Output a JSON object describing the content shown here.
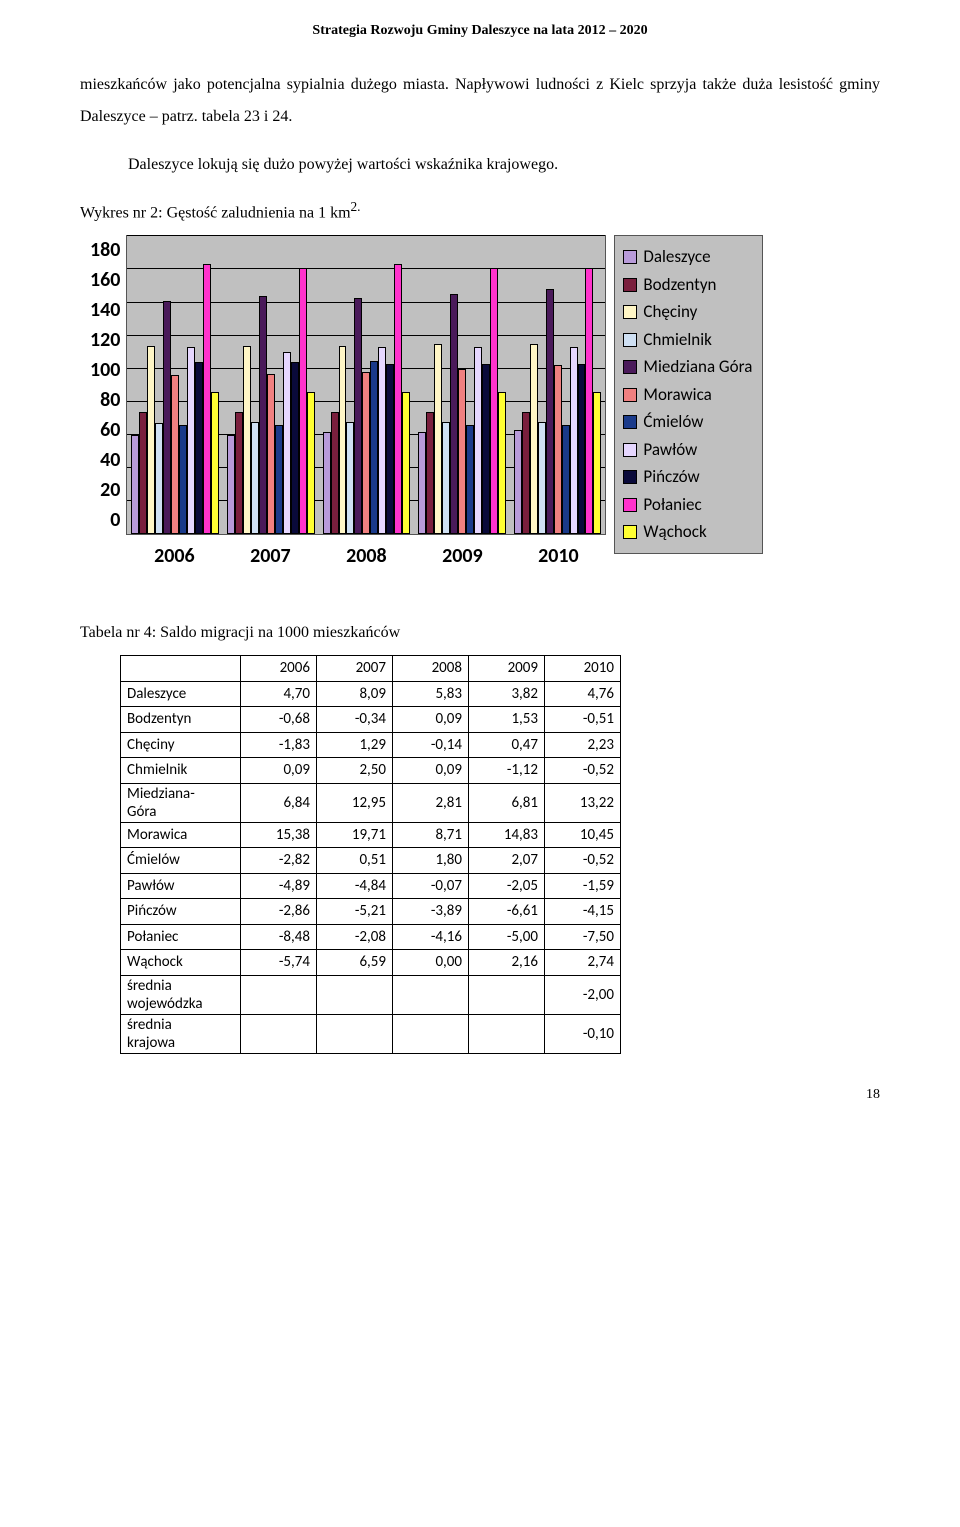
{
  "header": {
    "title": "Strategia Rozwoju Gminy Daleszyce na lata 2012 – 2020"
  },
  "paragraphs": {
    "p1": "mieszkańców jako potencjalna sypialnia dużego miasta. Napływowi ludności z Kielc sprzyja także duża lesistość gminy Daleszyce – patrz. tabela 23 i 24.",
    "p2": "Daleszyce lokują się dużo powyżej wartości wskaźnika krajowego.",
    "fig_caption": "Wykres nr 2: Gęstość zaludnienia na 1 km",
    "fig_caption_sup": "2.",
    "tbl_caption": "Tabela nr 4: Saldo migracji na 1000 mieszkańców"
  },
  "chart": {
    "type": "bar",
    "ylim": [
      0,
      180
    ],
    "yticks": [
      0,
      20,
      40,
      60,
      80,
      100,
      120,
      140,
      160,
      180
    ],
    "categories": [
      "2006",
      "2007",
      "2008",
      "2009",
      "2010"
    ],
    "series": [
      {
        "name": "Daleszyce",
        "color": "#b89bd9",
        "values": [
          60,
          60,
          62,
          62,
          63
        ]
      },
      {
        "name": "Bodzentyn",
        "color": "#7a1f3d",
        "values": [
          74,
          74,
          74,
          74,
          74
        ]
      },
      {
        "name": "Chęciny",
        "color": "#fff6c6",
        "values": [
          114,
          114,
          114,
          115,
          115
        ]
      },
      {
        "name": "Chmielnik",
        "color": "#cfe0f3",
        "values": [
          67,
          68,
          68,
          68,
          68
        ]
      },
      {
        "name": "Miedziana Góra",
        "color": "#4a1a5a",
        "values": [
          141,
          144,
          143,
          145,
          148
        ]
      },
      {
        "name": "Morawica",
        "color": "#f08080",
        "values": [
          96,
          97,
          98,
          100,
          102
        ]
      },
      {
        "name": "Ćmielów",
        "color": "#1a3a8a",
        "values": [
          66,
          66,
          105,
          66,
          66
        ]
      },
      {
        "name": "Pawłów",
        "color": "#e6d7ff",
        "values": [
          113,
          110,
          113,
          113,
          113
        ]
      },
      {
        "name": "Pińczów",
        "color": "#0a0a3a",
        "values": [
          104,
          104,
          103,
          103,
          103
        ]
      },
      {
        "name": "Połaniec",
        "color": "#ff33cc",
        "values": [
          163,
          161,
          163,
          161,
          161
        ]
      },
      {
        "name": "Wąchock",
        "color": "#ffff33",
        "values": [
          86,
          86,
          86,
          86,
          86
        ]
      }
    ],
    "background": "#c0c0c0",
    "grid_color": "#000000"
  },
  "table": {
    "columns": [
      "",
      "2006",
      "2007",
      "2008",
      "2009",
      "2010"
    ],
    "rows": [
      [
        "Daleszyce",
        "4,70",
        "8,09",
        "5,83",
        "3,82",
        "4,76"
      ],
      [
        "Bodzentyn",
        "-0,68",
        "-0,34",
        "0,09",
        "1,53",
        "-0,51"
      ],
      [
        "Chęciny",
        "-1,83",
        "1,29",
        "-0,14",
        "0,47",
        "2,23"
      ],
      [
        "Chmielnik",
        "0,09",
        "2,50",
        "0,09",
        "-1,12",
        "-0,52"
      ],
      [
        "Miedziana-\nGóra",
        "6,84",
        "12,95",
        "2,81",
        "6,81",
        "13,22"
      ],
      [
        "Morawica",
        "15,38",
        "19,71",
        "8,71",
        "14,83",
        "10,45"
      ],
      [
        "Ćmielów",
        "-2,82",
        "0,51",
        "1,80",
        "2,07",
        "-0,52"
      ],
      [
        "Pawłów",
        "-4,89",
        "-4,84",
        "-0,07",
        "-2,05",
        "-1,59"
      ],
      [
        "Pińczów",
        "-2,86",
        "-5,21",
        "-3,89",
        "-6,61",
        "-4,15"
      ],
      [
        "Połaniec",
        "-8,48",
        "-2,08",
        "-4,16",
        "-5,00",
        "-7,50"
      ],
      [
        "Wąchock",
        "-5,74",
        "6,59",
        "0,00",
        "2,16",
        "2,74"
      ],
      [
        "średnia\nwojewódzka",
        "",
        "",
        "",
        "",
        "-2,00"
      ],
      [
        "średnia\nkrajowa",
        "",
        "",
        "",
        "",
        "-0,10"
      ]
    ]
  },
  "page_number": "18"
}
